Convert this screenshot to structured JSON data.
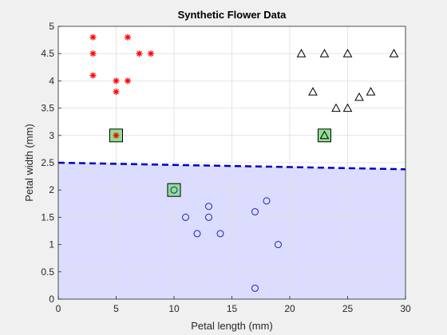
{
  "chart_data": {
    "type": "scatter",
    "title": "Synthetic Flower Data",
    "xlabel": "Petal length (mm)",
    "ylabel": "Petal width (mm)",
    "xlim": [
      0,
      30
    ],
    "ylim": [
      0,
      5
    ],
    "xticks": [
      "0",
      "5",
      "10",
      "15",
      "20",
      "25",
      "30"
    ],
    "yticks": [
      "0",
      "0.5",
      "1",
      "1.5",
      "2",
      "2.5",
      "3",
      "3.5",
      "4",
      "4.5",
      "5"
    ],
    "grid": true,
    "legend": "none",
    "series": [
      {
        "marker": "asterisk",
        "color": "#ff0000",
        "points": [
          [
            3,
            4.8
          ],
          [
            6,
            4.8
          ],
          [
            3,
            4.5
          ],
          [
            7,
            4.5
          ],
          [
            8,
            4.5
          ],
          [
            3,
            4.1
          ],
          [
            5,
            4.0
          ],
          [
            6,
            4.0
          ],
          [
            5,
            3.8
          ],
          [
            5,
            3.0
          ]
        ]
      },
      {
        "marker": "triangle",
        "color": "#000000",
        "points": [
          [
            21,
            4.5
          ],
          [
            23,
            4.5
          ],
          [
            25,
            4.5
          ],
          [
            29,
            4.5
          ],
          [
            22,
            3.8
          ],
          [
            27,
            3.8
          ],
          [
            26,
            3.7
          ],
          [
            24,
            3.5
          ],
          [
            25,
            3.5
          ],
          [
            23,
            3.0
          ]
        ]
      },
      {
        "marker": "circle",
        "color": "#1f1fbf",
        "points": [
          [
            10,
            2.0
          ],
          [
            18,
            1.8
          ],
          [
            13,
            1.7
          ],
          [
            17,
            1.6
          ],
          [
            11,
            1.5
          ],
          [
            13,
            1.5
          ],
          [
            12,
            1.2
          ],
          [
            14,
            1.2
          ],
          [
            19,
            1.0
          ],
          [
            17,
            0.2
          ]
        ]
      }
    ],
    "highlighted_points": [
      [
        5,
        3.0
      ],
      [
        10,
        2.0
      ],
      [
        23,
        3.0
      ]
    ],
    "highlight_color": "#8fe08f",
    "boundary": {
      "style": "dashed",
      "color": "#0000cc",
      "points": [
        [
          0,
          2.5
        ],
        [
          30,
          2.38
        ]
      ]
    },
    "shaded_region": {
      "color": "#dcdcff",
      "description_side": "below boundary"
    }
  }
}
